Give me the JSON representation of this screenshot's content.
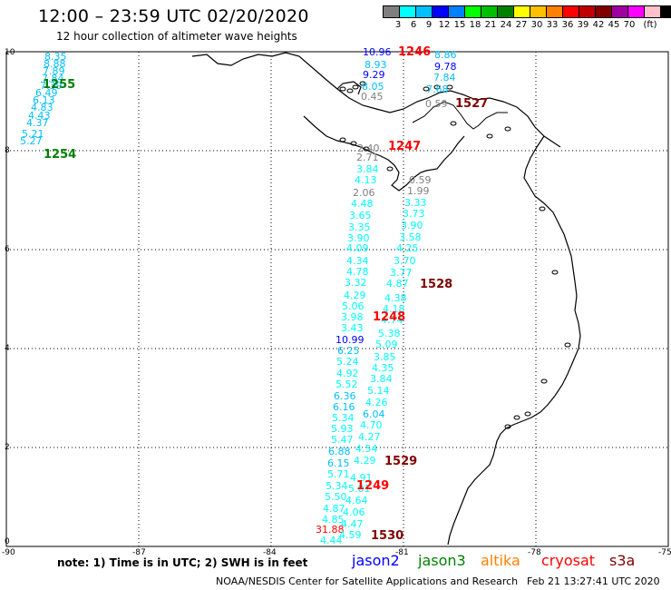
{
  "header": {
    "title": "12:00 – 23:59 UTC 02/20/2020",
    "subtitle": "12 hour collection of altimeter wave heights"
  },
  "colorbar": {
    "colors": [
      "#7f7f7f",
      "#00ffff",
      "#00bfff",
      "#0000ff",
      "#0080ff",
      "#00ff00",
      "#00c000",
      "#008000",
      "#ffff00",
      "#ffc000",
      "#ff8000",
      "#ff0000",
      "#c00000",
      "#800000",
      "#a000a0",
      "#ff00ff",
      "#ffc0cb",
      "#000000"
    ],
    "labels": [
      "3",
      "6",
      "9",
      "12",
      "15",
      "18",
      "21",
      "24",
      "27",
      "30",
      "33",
      "36",
      "39",
      "42",
      "45",
      "70",
      "(ft)"
    ]
  },
  "axes": {
    "x_ticks": [
      "-90",
      "-87",
      "-84",
      "-81",
      "-78",
      "-75"
    ],
    "y_ticks": [
      "10",
      "8",
      "6",
      "4",
      "2",
      "0"
    ]
  },
  "wave_labels": [
    {
      "text": "8.35",
      "c": "#00bfff"
    },
    {
      "text": "8.88",
      "c": "#00bfff"
    },
    {
      "text": "7.89",
      "c": "#00bfff"
    },
    {
      "text": "7.84",
      "c": "#00bfff"
    },
    {
      "text": "7.39",
      "c": "#00bfff"
    },
    {
      "text": "6.49",
      "c": "#00bfff"
    },
    {
      "text": "6.13",
      "c": "#00bfff"
    },
    {
      "text": "4.83",
      "c": "#00bfff"
    },
    {
      "text": "4.43",
      "c": "#00bfff"
    },
    {
      "text": "4.37",
      "c": "#00bfff"
    },
    {
      "text": "5.21",
      "c": "#00bfff"
    },
    {
      "text": "5.27",
      "c": "#00bfff"
    },
    {
      "text": "10.96",
      "c": "#0000ff"
    },
    {
      "text": "8.86",
      "c": "#00bfff"
    },
    {
      "text": "8.93",
      "c": "#00bfff"
    },
    {
      "text": "9.78",
      "c": "#0000ff"
    },
    {
      "text": "9.29",
      "c": "#0000ff"
    },
    {
      "text": "7.84",
      "c": "#00bfff"
    },
    {
      "text": "8.05",
      "c": "#00bfff"
    },
    {
      "text": "7.68",
      "c": "#00bfff"
    },
    {
      "text": "0.45",
      "c": "#7f7f7f"
    },
    {
      "text": "0.59",
      "c": "#7f7f7f"
    },
    {
      "text": "2.40",
      "c": "#7f7f7f"
    },
    {
      "text": "2.71",
      "c": "#7f7f7f"
    },
    {
      "text": "3.84",
      "c": "#00ffff"
    },
    {
      "text": "4.13",
      "c": "#00ffff"
    },
    {
      "text": "2.06",
      "c": "#7f7f7f"
    },
    {
      "text": "4.48",
      "c": "#00ffff"
    },
    {
      "text": "3.65",
      "c": "#00ffff"
    },
    {
      "text": "3.35",
      "c": "#00ffff"
    },
    {
      "text": "3.90",
      "c": "#00ffff"
    },
    {
      "text": "4.09",
      "c": "#00ffff"
    },
    {
      "text": "4.34",
      "c": "#00ffff"
    },
    {
      "text": "4.78",
      "c": "#00ffff"
    },
    {
      "text": "3.32",
      "c": "#00ffff"
    },
    {
      "text": "4.29",
      "c": "#00ffff"
    },
    {
      "text": "5.06",
      "c": "#00ffff"
    },
    {
      "text": "3.98",
      "c": "#00ffff"
    },
    {
      "text": "3.43",
      "c": "#00ffff"
    },
    {
      "text": "10.99",
      "c": "#0000ff"
    },
    {
      "text": "6.25",
      "c": "#00bfff"
    },
    {
      "text": "5.24",
      "c": "#00ffff"
    },
    {
      "text": "4.92",
      "c": "#00ffff"
    },
    {
      "text": "5.52",
      "c": "#00ffff"
    },
    {
      "text": "6.36",
      "c": "#00bfff"
    },
    {
      "text": "6.16",
      "c": "#00bfff"
    },
    {
      "text": "5.34",
      "c": "#00ffff"
    },
    {
      "text": "5.93",
      "c": "#00ffff"
    },
    {
      "text": "5.47",
      "c": "#00ffff"
    },
    {
      "text": "6.88",
      "c": "#00bfff"
    },
    {
      "text": "6.15",
      "c": "#00bfff"
    },
    {
      "text": "5.71",
      "c": "#00ffff"
    },
    {
      "text": "5.34",
      "c": "#00ffff"
    },
    {
      "text": "5.50",
      "c": "#00ffff"
    },
    {
      "text": "4.87",
      "c": "#00ffff"
    },
    {
      "text": "4.85",
      "c": "#00ffff"
    },
    {
      "text": "4.44",
      "c": "#00ffff"
    },
    {
      "text": "31.88",
      "c": "#ff0000"
    },
    {
      "text": "0.59",
      "c": "#7f7f7f"
    },
    {
      "text": "1.99",
      "c": "#7f7f7f"
    },
    {
      "text": "3.33",
      "c": "#00ffff"
    },
    {
      "text": "3.73",
      "c": "#00ffff"
    },
    {
      "text": "3.90",
      "c": "#00ffff"
    },
    {
      "text": "3.58",
      "c": "#00ffff"
    },
    {
      "text": "4.25",
      "c": "#00ffff"
    },
    {
      "text": "3.70",
      "c": "#00ffff"
    },
    {
      "text": "3.77",
      "c": "#00ffff"
    },
    {
      "text": "4.87",
      "c": "#00ffff"
    },
    {
      "text": "4.38",
      "c": "#00ffff"
    },
    {
      "text": "4.18",
      "c": "#00ffff"
    },
    {
      "text": "4.74",
      "c": "#00ffff"
    },
    {
      "text": "5.38",
      "c": "#00ffff"
    },
    {
      "text": "5.09",
      "c": "#00ffff"
    },
    {
      "text": "3.85",
      "c": "#00ffff"
    },
    {
      "text": "4.35",
      "c": "#00ffff"
    },
    {
      "text": "3.84",
      "c": "#00ffff"
    },
    {
      "text": "5.14",
      "c": "#00ffff"
    },
    {
      "text": "4.26",
      "c": "#00ffff"
    },
    {
      "text": "6.04",
      "c": "#00bfff"
    },
    {
      "text": "4.70",
      "c": "#00ffff"
    },
    {
      "text": "4.27",
      "c": "#00ffff"
    },
    {
      "text": "4.54",
      "c": "#00ffff"
    },
    {
      "text": "4.29",
      "c": "#00ffff"
    },
    {
      "text": "4.91",
      "c": "#00ffff"
    },
    {
      "text": "5.01",
      "c": "#00ffff"
    },
    {
      "text": "4.64",
      "c": "#00ffff"
    },
    {
      "text": "4.06",
      "c": "#00ffff"
    },
    {
      "text": "4.47",
      "c": "#00ffff"
    },
    {
      "text": "4.59",
      "c": "#00ffff"
    }
  ],
  "pass_labels": [
    {
      "text": "1255",
      "c": "#008000"
    },
    {
      "text": "1254",
      "c": "#008000"
    },
    {
      "text": "1246",
      "c": "#ff0000"
    },
    {
      "text": "1527",
      "c": "#800000"
    },
    {
      "text": "1247",
      "c": "#ff0000"
    },
    {
      "text": "1528",
      "c": "#800000"
    },
    {
      "text": "1248",
      "c": "#ff0000"
    },
    {
      "text": "1529",
      "c": "#800000"
    },
    {
      "text": "1249",
      "c": "#ff0000"
    },
    {
      "text": "1530",
      "c": "#800000"
    }
  ],
  "footer": {
    "note": "note:  1) Time is in UTC; 2) SWH is in feet",
    "credit": "NOAA/NESDIS Center for Satellite Applications and Research",
    "timestamp": "Feb 21 13:27:41 UTC 2020"
  },
  "legend": [
    {
      "name": "jason2",
      "color": "#0000ff"
    },
    {
      "name": "jason3",
      "color": "#008000"
    },
    {
      "name": "altika",
      "color": "#ff8000"
    },
    {
      "name": "cryosat",
      "color": "#ff0000"
    },
    {
      "name": "s3a",
      "color": "#800000"
    }
  ]
}
